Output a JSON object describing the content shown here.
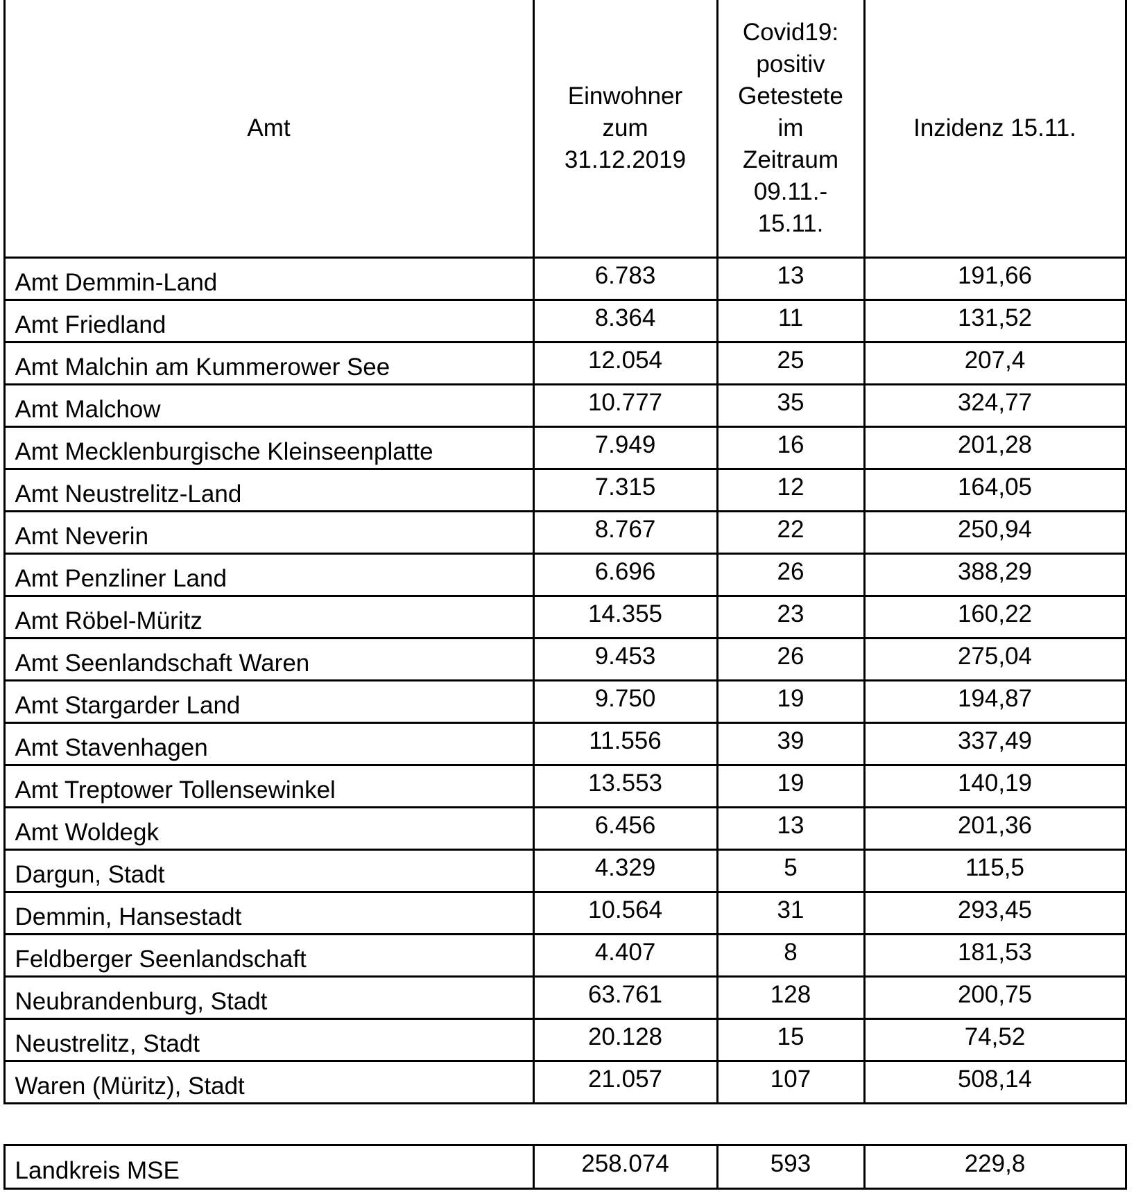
{
  "table": {
    "header": [
      [
        "Amt"
      ],
      [
        "Einwohner",
        "zum",
        "31.12.2019"
      ],
      [
        "Covid19:",
        "positiv",
        "Getestete",
        "im",
        "Zeitraum",
        "09.11.-",
        "15.11."
      ],
      [
        "Inzidenz 15.11."
      ]
    ],
    "rows": [
      [
        "Amt Demmin-Land",
        "6.783",
        "13",
        "191,66"
      ],
      [
        "Amt Friedland",
        "8.364",
        "11",
        "131,52"
      ],
      [
        "Amt Malchin am Kummerower See",
        "12.054",
        "25",
        "207,4"
      ],
      [
        "Amt Malchow",
        "10.777",
        "35",
        "324,77"
      ],
      [
        "Amt Mecklenburgische Kleinseenplatte",
        "7.949",
        "16",
        "201,28"
      ],
      [
        "Amt Neustrelitz-Land",
        "7.315",
        "12",
        "164,05"
      ],
      [
        "Amt Neverin",
        "8.767",
        "22",
        "250,94"
      ],
      [
        "Amt Penzliner Land",
        "6.696",
        "26",
        "388,29"
      ],
      [
        "Amt Röbel-Müritz",
        "14.355",
        "23",
        "160,22"
      ],
      [
        "Amt Seenlandschaft Waren",
        "9.453",
        "26",
        "275,04"
      ],
      [
        "Amt Stargarder Land",
        "9.750",
        "19",
        "194,87"
      ],
      [
        "Amt Stavenhagen",
        "11.556",
        "39",
        "337,49"
      ],
      [
        "Amt Treptower Tollensewinkel",
        "13.553",
        "19",
        "140,19"
      ],
      [
        "Amt Woldegk",
        "6.456",
        "13",
        "201,36"
      ],
      [
        "Dargun, Stadt",
        "4.329",
        "5",
        "115,5"
      ],
      [
        "Demmin, Hansestadt",
        "10.564",
        "31",
        "293,45"
      ],
      [
        "Feldberger Seenlandschaft",
        "4.407",
        "8",
        "181,53"
      ],
      [
        "Neubrandenburg, Stadt",
        "63.761",
        "128",
        "200,75"
      ],
      [
        "Neustrelitz, Stadt",
        "20.128",
        "15",
        "74,52"
      ],
      [
        "Waren (Müritz), Stadt",
        "21.057",
        "107",
        "508,14"
      ]
    ],
    "total": [
      "Landkreis MSE",
      "258.074",
      "593",
      "229,8"
    ]
  }
}
